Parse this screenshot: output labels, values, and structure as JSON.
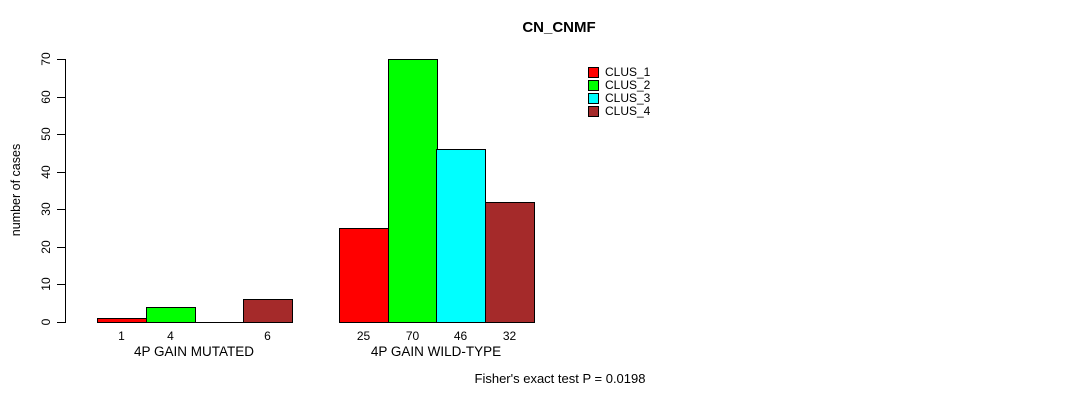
{
  "chart_data": {
    "type": "bar",
    "title": "CN_CNMF",
    "ylabel": "number of cases",
    "xlabel": "",
    "ylim": [
      0,
      70
    ],
    "yticks": [
      0,
      10,
      20,
      30,
      40,
      50,
      60,
      70
    ],
    "grid": false,
    "legend_position": "top-right",
    "axis_color": "#000000",
    "background_color": "#ffffff",
    "series": [
      {
        "name": "CLUS_1",
        "color": "#ff0000"
      },
      {
        "name": "CLUS_2",
        "color": "#00ff00"
      },
      {
        "name": "CLUS_3",
        "color": "#00ffff"
      },
      {
        "name": "CLUS_4",
        "color": "#a52a2a"
      }
    ],
    "groups": [
      {
        "label": "4P GAIN MUTATED",
        "values": [
          1,
          4,
          0,
          6
        ],
        "bar_labels": [
          "1",
          "4",
          "",
          "6"
        ]
      },
      {
        "label": "4P GAIN WILD-TYPE",
        "values": [
          25,
          70,
          46,
          32
        ],
        "bar_labels": [
          "25",
          "70",
          "46",
          "32"
        ]
      }
    ],
    "footer": "Fisher's exact test P = 0.0198"
  }
}
